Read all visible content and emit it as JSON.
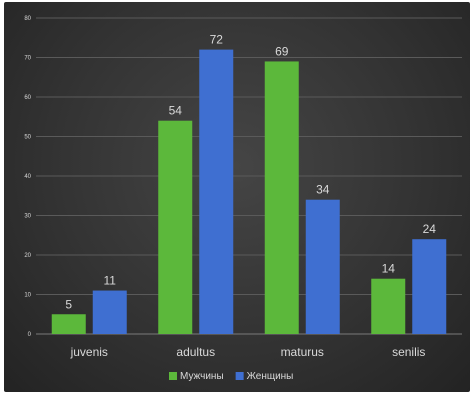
{
  "chart_data": {
    "type": "bar",
    "categories": [
      "juvenis",
      "adultus",
      "maturus",
      "senilis"
    ],
    "series": [
      {
        "name": "Мужчины",
        "values": [
          5,
          54,
          69,
          14
        ],
        "color": "#5cb83b"
      },
      {
        "name": "Женщины",
        "values": [
          11,
          72,
          34,
          24
        ],
        "color": "#3f6fd1"
      }
    ],
    "ylim": [
      0,
      80
    ],
    "yticks": [
      "0",
      "10",
      "20",
      "30",
      "40",
      "50",
      "60",
      "70",
      "80"
    ],
    "data_labels": true,
    "grid": true,
    "legend": "bottom"
  },
  "colors": {
    "grid": "#5a5a5a",
    "axis": "#7a7a7a"
  }
}
